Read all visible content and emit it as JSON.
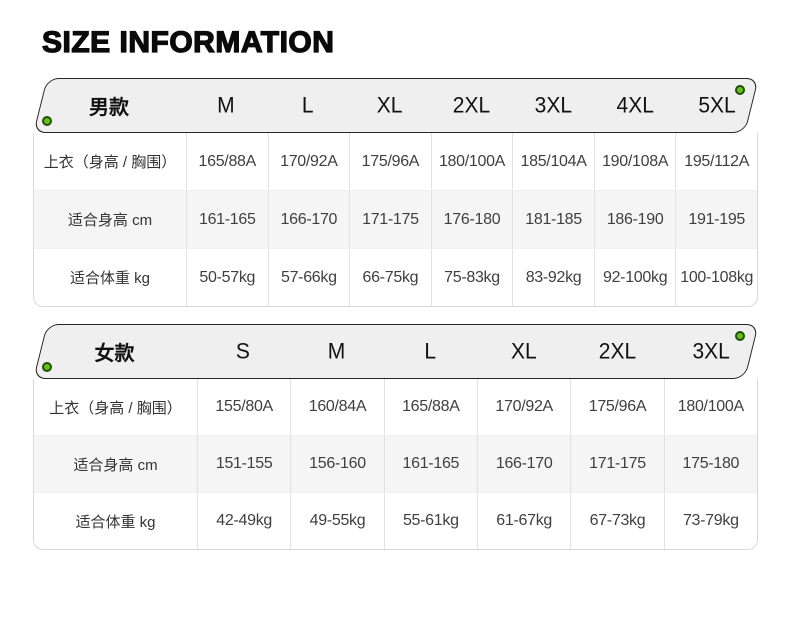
{
  "page": {
    "title": "SIZE INFORMATION"
  },
  "colors": {
    "accent_green": "#62c216",
    "accent_green_ring": "#234e08",
    "banner_bg": "#efefef",
    "banner_border": "#262626",
    "alt_row_bg": "#f5f5f5"
  },
  "tables": [
    {
      "id": "men",
      "header": {
        "label": "男款",
        "sizes": [
          "M",
          "L",
          "XL",
          "2XL",
          "3XL",
          "4XL",
          "5XL"
        ]
      },
      "rows": [
        {
          "label": "上衣（身高 / 胸围）",
          "values": [
            "165/88A",
            "170/92A",
            "175/96A",
            "180/100A",
            "185/104A",
            "190/108A",
            "195/112A"
          ]
        },
        {
          "label": "适合身高 cm",
          "values": [
            "161-165",
            "166-170",
            "171-175",
            "176-180",
            "181-185",
            "186-190",
            "191-195"
          ]
        },
        {
          "label": "适合体重 kg",
          "values": [
            "50-57kg",
            "57-66kg",
            "66-75kg",
            "75-83kg",
            "83-92kg",
            "92-100kg",
            "100-108kg"
          ]
        }
      ]
    },
    {
      "id": "women",
      "header": {
        "label": "女款",
        "sizes": [
          "S",
          "M",
          "L",
          "XL",
          "2XL",
          "3XL"
        ]
      },
      "rows": [
        {
          "label": "上衣（身高 / 胸围）",
          "values": [
            "155/80A",
            "160/84A",
            "165/88A",
            "170/92A",
            "175/96A",
            "180/100A"
          ]
        },
        {
          "label": "适合身高 cm",
          "values": [
            "151-155",
            "156-160",
            "161-165",
            "166-170",
            "171-175",
            "175-180"
          ]
        },
        {
          "label": "适合体重 kg",
          "values": [
            "42-49kg",
            "49-55kg",
            "55-61kg",
            "61-67kg",
            "67-73kg",
            "73-79kg"
          ]
        }
      ]
    }
  ]
}
